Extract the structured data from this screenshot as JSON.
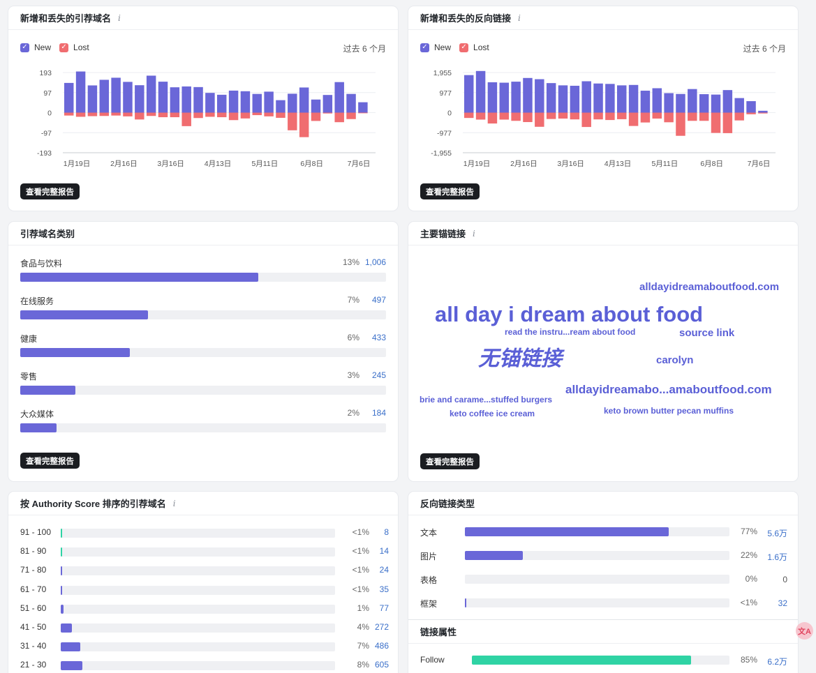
{
  "panels": {
    "new_lost_domains": {
      "title": "新增和丢失的引荐域名",
      "legend_new": "New",
      "legend_lost": "Lost",
      "period": "过去 6 个月",
      "button": "查看完整报告"
    },
    "new_lost_backlinks": {
      "title": "新增和丢失的反向链接",
      "legend_new": "New",
      "legend_lost": "Lost",
      "period": "过去 6 个月",
      "button": "查看完整报告"
    },
    "domain_categories": {
      "title": "引荐域名类别",
      "button": "查看完整报告",
      "items": [
        {
          "name": "食品与饮料",
          "pct": "13%",
          "value": "1,006",
          "fill": 0.13
        },
        {
          "name": "在线服务",
          "pct": "7%",
          "value": "497",
          "fill": 0.07
        },
        {
          "name": "健康",
          "pct": "6%",
          "value": "433",
          "fill": 0.06
        },
        {
          "name": "零售",
          "pct": "3%",
          "value": "245",
          "fill": 0.03
        },
        {
          "name": "大众媒体",
          "pct": "2%",
          "value": "184",
          "fill": 0.02
        }
      ]
    },
    "top_anchors": {
      "title": "主要锚链接",
      "button": "查看完整报告",
      "words": [
        {
          "text": "alldayidreamaboutfood.com"
        },
        {
          "text": "all day i dream about food"
        },
        {
          "text": "read the instru...ream about food"
        },
        {
          "text": "source link"
        },
        {
          "text": "无锚链接"
        },
        {
          "text": "carolyn"
        },
        {
          "text": "alldayidreamabo...amaboutfood.com"
        },
        {
          "text": "brie and carame...stuffed burgers"
        },
        {
          "text": "keto coffee ice cream"
        },
        {
          "text": "keto brown butter pecan muffins"
        }
      ]
    },
    "authority_score": {
      "title": "按 Authority Score 排序的引荐域名",
      "rows": [
        {
          "range": "91 - 100",
          "pct": "<1%",
          "value": "8",
          "fill": 0.005,
          "color": "#2fd3a4"
        },
        {
          "range": "81 - 90",
          "pct": "<1%",
          "value": "14",
          "fill": 0.005,
          "color": "#2fd3a4"
        },
        {
          "range": "71 - 80",
          "pct": "<1%",
          "value": "24",
          "fill": 0.005,
          "color": "#6a67d8"
        },
        {
          "range": "61 - 70",
          "pct": "<1%",
          "value": "35",
          "fill": 0.005,
          "color": "#6a67d8"
        },
        {
          "range": "51 - 60",
          "pct": "1%",
          "value": "77",
          "fill": 0.01,
          "color": "#6a67d8"
        },
        {
          "range": "41 - 50",
          "pct": "4%",
          "value": "272",
          "fill": 0.04,
          "color": "#6a67d8"
        },
        {
          "range": "31 - 40",
          "pct": "7%",
          "value": "486",
          "fill": 0.07,
          "color": "#6a67d8"
        },
        {
          "range": "21 - 30",
          "pct": "8%",
          "value": "605",
          "fill": 0.08,
          "color": "#6a67d8"
        }
      ]
    },
    "backlink_types": {
      "title": "反向链接类型",
      "rows": [
        {
          "label": "文本",
          "pct": "77%",
          "value": "5.6万",
          "fill": 0.77
        },
        {
          "label": "图片",
          "pct": "22%",
          "value": "1.6万",
          "fill": 0.22
        },
        {
          "label": "表格",
          "pct": "0%",
          "value": "0",
          "fill": 0
        },
        {
          "label": "框架",
          "pct": "<1%",
          "value": "32",
          "fill": 0.005
        }
      ]
    },
    "link_attributes": {
      "title": "链接属性",
      "rows": [
        {
          "label": "Follow",
          "pct": "85%",
          "value": "6.2万",
          "fill": 0.85
        }
      ]
    }
  },
  "colors": {
    "new": "#6a67d8",
    "lost": "#f06d70",
    "accent_link": "#3a6fc9",
    "follow": "#2fd3a4"
  },
  "translate_icon": "translate-icon",
  "chart_data": [
    {
      "type": "bar",
      "title": "新增和丢失的引荐域名",
      "x_ticks": [
        "1月19日",
        "2月16日",
        "3月16日",
        "4月13日",
        "5月11日",
        "6月8日",
        "7月6日"
      ],
      "y_ticks": [
        "193",
        "97",
        "0",
        "-97",
        "-193"
      ],
      "ylim": [
        -193,
        193
      ],
      "series": [
        {
          "name": "New",
          "values": [
            143,
            198,
            131,
            158,
            168,
            148,
            132,
            178,
            149,
            122,
            126,
            123,
            95,
            86,
            106,
            103,
            90,
            101,
            60,
            91,
            121,
            63,
            85,
            147,
            90,
            50
          ]
        },
        {
          "name": "Lost",
          "values": [
            -14,
            -20,
            -17,
            -16,
            -14,
            -18,
            -33,
            -16,
            -22,
            -22,
            -65,
            -26,
            -20,
            -22,
            -36,
            -28,
            -12,
            -18,
            -25,
            -85,
            -118,
            -40,
            -4,
            -46,
            -31,
            -3
          ]
        }
      ]
    },
    {
      "type": "bar",
      "title": "新增和丢失的反向链接",
      "x_ticks": [
        "1月19日",
        "2月16日",
        "3月16日",
        "4月13日",
        "5月11日",
        "6月8日",
        "7月6日"
      ],
      "y_ticks": [
        "1,955",
        "977",
        "0",
        "-977",
        "-1,955"
      ],
      "ylim": [
        -1955,
        1955
      ],
      "series": [
        {
          "name": "New",
          "values": [
            1830,
            2030,
            1480,
            1460,
            1510,
            1690,
            1630,
            1440,
            1330,
            1310,
            1530,
            1420,
            1400,
            1330,
            1350,
            1070,
            1190,
            950,
            910,
            1150,
            900,
            880,
            1100,
            710,
            560,
            90
          ]
        },
        {
          "name": "Lost",
          "values": [
            -260,
            -340,
            -530,
            -340,
            -400,
            -460,
            -690,
            -310,
            -290,
            -330,
            -700,
            -330,
            -360,
            -320,
            -650,
            -480,
            -290,
            -470,
            -1130,
            -400,
            -400,
            -990,
            -1000,
            -380,
            -80,
            -40
          ]
        }
      ]
    }
  ]
}
